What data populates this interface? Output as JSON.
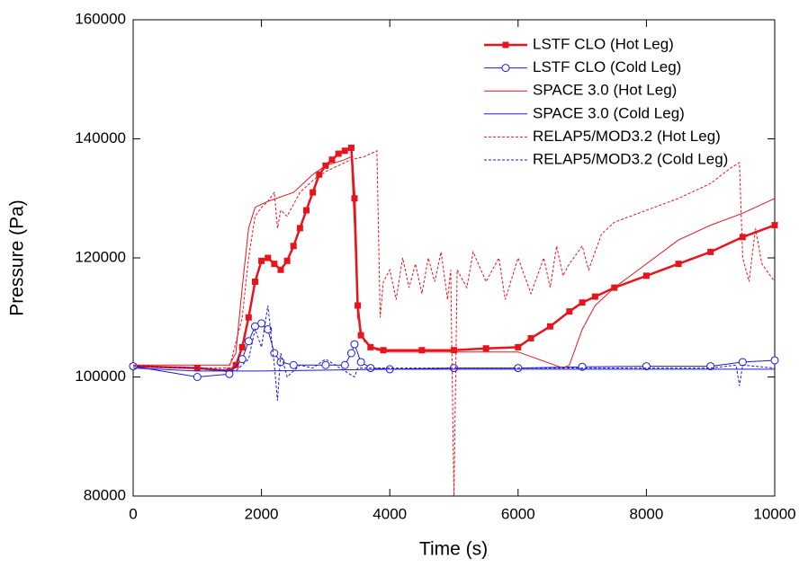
{
  "chart_data": {
    "type": "line",
    "x_label": "Time (s)",
    "y_label": "Pressure (Pa)",
    "xlim": [
      0,
      10000
    ],
    "xticks": [
      0,
      2000,
      4000,
      6000,
      8000,
      10000
    ],
    "ylim": [
      80000,
      160000
    ],
    "yticks": [
      80000,
      100000,
      120000,
      140000,
      160000
    ],
    "grid": false,
    "legend": "upper right",
    "series": [
      {
        "name": "LSTF CLO (Hot Leg)",
        "color": "#e8141c",
        "line": "solid",
        "width": 2.5,
        "marker": "square",
        "x": [
          0,
          1000,
          1500,
          1600,
          1700,
          1800,
          1900,
          2000,
          2100,
          2200,
          2300,
          2400,
          2500,
          2600,
          2700,
          2800,
          2900,
          3000,
          3100,
          3200,
          3300,
          3400,
          3450,
          3500,
          3550,
          3700,
          3900,
          4500,
          5000,
          5500,
          6000,
          6200,
          6500,
          6800,
          7000,
          7200,
          7500,
          8000,
          8500,
          9000,
          9500,
          10000
        ],
        "values": [
          101800,
          101500,
          101000,
          102000,
          105000,
          110000,
          116000,
          119500,
          120000,
          119000,
          118000,
          119500,
          122000,
          125000,
          128000,
          131000,
          134000,
          135500,
          136500,
          137500,
          138000,
          138500,
          130000,
          112000,
          107000,
          105000,
          104500,
          104500,
          104500,
          104800,
          105000,
          106500,
          108500,
          111000,
          112500,
          113500,
          115000,
          117000,
          119000,
          121000,
          123500,
          125500
        ]
      },
      {
        "name": "LSTF CLO (Cold Leg)",
        "color": "#1a1ae0",
        "line": "solid",
        "width": 1,
        "marker": "circle",
        "x": [
          0,
          1000,
          1500,
          1700,
          1800,
          1900,
          2000,
          2100,
          2200,
          2300,
          2500,
          3000,
          3300,
          3400,
          3450,
          3550,
          3700,
          4000,
          5000,
          6000,
          7000,
          8000,
          9000,
          9500,
          10000
        ],
        "values": [
          101800,
          100000,
          100500,
          103000,
          106000,
          108500,
          109000,
          108000,
          104000,
          102500,
          102000,
          102000,
          102000,
          104000,
          105500,
          102500,
          101500,
          101300,
          101500,
          101500,
          101700,
          101800,
          101800,
          102500,
          102800
        ]
      },
      {
        "name": "SPACE 3.0 (Hot Leg)",
        "color": "#e8141c",
        "line": "solid",
        "width": 1,
        "x": [
          0,
          1000,
          1500,
          1600,
          1700,
          1800,
          1900,
          2100,
          2500,
          2800,
          3000,
          3300,
          3400,
          3450,
          3500,
          3600,
          3800,
          4000,
          6000,
          6700,
          6800,
          7000,
          7200,
          7500,
          8000,
          8500,
          9000,
          9500,
          10000
        ],
        "values": [
          102000,
          102000,
          102000,
          104000,
          115000,
          125000,
          128500,
          129500,
          131000,
          134000,
          135500,
          136500,
          137000,
          125000,
          110000,
          106000,
          104500,
          104200,
          104200,
          101500,
          102000,
          108000,
          112000,
          115000,
          119000,
          123000,
          125500,
          127500,
          130000
        ]
      },
      {
        "name": "SPACE 3.0 (Cold Leg)",
        "color": "#1a1ae0",
        "line": "solid",
        "width": 1,
        "x": [
          0,
          1000,
          1500,
          2000,
          4000,
          10000
        ],
        "values": [
          101500,
          101000,
          101000,
          101000,
          101300,
          101300
        ]
      },
      {
        "name": "RELAP5/MOD3.2 (Hot Leg)",
        "color": "#e8141c",
        "line": "dashed",
        "width": 1,
        "x": [
          0,
          1000,
          1500,
          1700,
          1800,
          1900,
          2000,
          2100,
          2200,
          2250,
          2300,
          2400,
          2600,
          2800,
          3000,
          3200,
          3400,
          3600,
          3800,
          3850,
          3900,
          4000,
          4100,
          4200,
          4300,
          4400,
          4500,
          4600,
          4700,
          4800,
          4900,
          4950,
          5000,
          5050,
          5200,
          5300,
          5500,
          5700,
          5800,
          6000,
          6200,
          6400,
          6500,
          6600,
          6700,
          6800,
          7000,
          7100,
          7300,
          7500,
          8000,
          8500,
          9000,
          9300,
          9450,
          9500,
          9600,
          9700,
          9800,
          10000
        ],
        "values": [
          102000,
          101500,
          101500,
          110000,
          120000,
          127000,
          128500,
          129500,
          131000,
          125000,
          128000,
          127000,
          131000,
          133000,
          134500,
          135500,
          136500,
          137000,
          138000,
          110000,
          116000,
          118000,
          113000,
          120000,
          115000,
          119000,
          114000,
          120000,
          116000,
          121000,
          113000,
          118000,
          80000,
          118000,
          115000,
          121000,
          116000,
          120000,
          113000,
          120000,
          114000,
          120000,
          115000,
          122000,
          117000,
          119000,
          122000,
          118000,
          124000,
          126000,
          128000,
          130000,
          132500,
          135000,
          136000,
          120000,
          116000,
          125000,
          119000,
          116000
        ]
      },
      {
        "name": "RELAP5/MOD3.2 (Cold Leg)",
        "color": "#1a1ae0",
        "line": "dashed",
        "width": 1,
        "x": [
          0,
          1000,
          1600,
          1800,
          1900,
          2000,
          2100,
          2200,
          2250,
          2300,
          2400,
          2600,
          2800,
          3000,
          3300,
          3450,
          3500,
          4000,
          6000,
          9000,
          9400,
          9450,
          9500,
          10000
        ],
        "values": [
          101800,
          101500,
          101000,
          103000,
          108000,
          105000,
          112000,
          102000,
          96000,
          104000,
          100000,
          102000,
          101500,
          103000,
          101000,
          100000,
          101500,
          101500,
          101500,
          101500,
          102000,
          98500,
          102000,
          101500
        ]
      }
    ]
  }
}
